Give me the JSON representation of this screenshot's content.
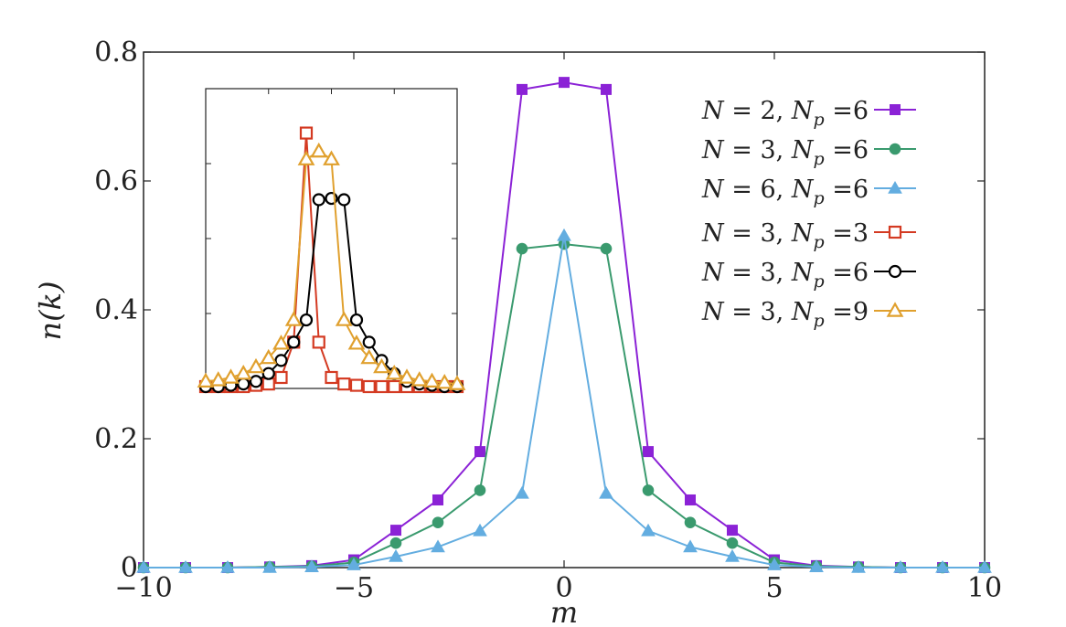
{
  "chart_data": [
    {
      "type": "line",
      "xlabel": "m",
      "ylabel": "n(k)",
      "xlim": [
        -10,
        10
      ],
      "ylim": [
        0,
        0.8
      ],
      "xticks": [
        -10,
        -5,
        0,
        5,
        10
      ],
      "xtick_labels": [
        "−10",
        "−5",
        "0",
        "5",
        "10"
      ],
      "yticks": [
        0,
        0.2,
        0.4,
        0.6,
        0.8
      ],
      "ytick_labels": [
        "0",
        "0.2",
        "0.4",
        "0.6",
        "0.8"
      ],
      "legend_position": "top-right",
      "x": [
        -10,
        -9,
        -8,
        -7,
        -6,
        -5,
        -4,
        -3,
        -2,
        -1,
        0,
        1,
        2,
        3,
        4,
        5,
        6,
        7,
        8,
        9,
        10
      ],
      "series": [
        {
          "name": "N = 2, N_p = 6",
          "legend_parts": [
            "N",
            " = 2, ",
            "N",
            "p",
            " =6"
          ],
          "color": "#8b22d6",
          "marker": "square-filled",
          "values": [
            0.0,
            0.0,
            0.0,
            0.001,
            0.003,
            0.012,
            0.058,
            0.105,
            0.18,
            0.742,
            0.753,
            0.742,
            0.18,
            0.105,
            0.058,
            0.012,
            0.003,
            0.001,
            0.0,
            0.0,
            0.0
          ]
        },
        {
          "name": "N = 3, N_p = 6",
          "legend_parts": [
            "N",
            " = 3, ",
            "N",
            "p",
            " =6"
          ],
          "color": "#3a9a6e",
          "marker": "circle-filled",
          "values": [
            0.0,
            0.0,
            0.0,
            0.001,
            0.002,
            0.008,
            0.038,
            0.07,
            0.12,
            0.495,
            0.502,
            0.495,
            0.12,
            0.07,
            0.038,
            0.008,
            0.002,
            0.001,
            0.0,
            0.0,
            0.0
          ]
        },
        {
          "name": "N = 6, N_p = 6",
          "legend_parts": [
            "N",
            " = 6, ",
            "N",
            "p",
            " =6"
          ],
          "color": "#63ade0",
          "marker": "triangle-filled",
          "values": [
            0.0,
            0.0,
            0.0,
            0.0,
            0.001,
            0.004,
            0.017,
            0.032,
            0.057,
            0.115,
            0.515,
            0.115,
            0.057,
            0.032,
            0.017,
            0.004,
            0.001,
            0.0,
            0.0,
            0.0,
            0.0
          ]
        }
      ]
    },
    {
      "type": "line",
      "inset": true,
      "x": [
        -10,
        -9,
        -8,
        -7,
        -6,
        -5,
        -4,
        -3,
        -2,
        -1,
        0,
        1,
        2,
        3,
        4,
        5,
        6,
        7,
        8,
        9,
        10
      ],
      "series": [
        {
          "name": "N = 3, N_p = 3",
          "legend_parts": [
            "N",
            " = 3, ",
            "N",
            "p",
            " =3"
          ],
          "color": "#d43a22",
          "marker": "square-open",
          "values": [
            0.0,
            0.0,
            0.0,
            0.0,
            0.005,
            0.01,
            0.035,
            0.17,
            0.97,
            0.17,
            0.035,
            0.01,
            0.005,
            0.0,
            0.0,
            0.0,
            0.0,
            0.0,
            0.0,
            0.0,
            0.0
          ]
        },
        {
          "name": "N = 3, N_p = 6",
          "legend_parts": [
            "N",
            " = 3, ",
            "N",
            "p",
            " =6"
          ],
          "color": "#000000",
          "marker": "circle-open",
          "values": [
            0.0,
            0.0,
            0.005,
            0.01,
            0.02,
            0.05,
            0.1,
            0.17,
            0.255,
            0.715,
            0.72,
            0.715,
            0.255,
            0.17,
            0.1,
            0.05,
            0.02,
            0.01,
            0.005,
            0.0,
            0.0
          ]
        },
        {
          "name": "N = 3, N_p = 9",
          "legend_parts": [
            "N",
            " = 3, ",
            "N",
            "p",
            " =9"
          ],
          "color": "#e0a02e",
          "marker": "triangle-open",
          "values": [
            0.02,
            0.025,
            0.035,
            0.05,
            0.075,
            0.11,
            0.165,
            0.255,
            0.87,
            0.9,
            0.87,
            0.255,
            0.165,
            0.11,
            0.075,
            0.05,
            0.035,
            0.025,
            0.02,
            0.015,
            0.01
          ]
        }
      ]
    }
  ]
}
